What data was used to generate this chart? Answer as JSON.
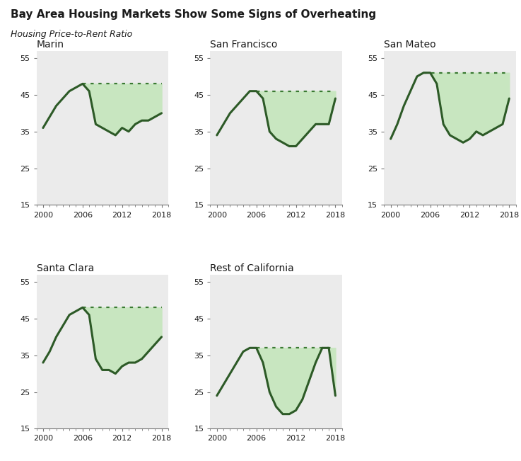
{
  "title": "Bay Area Housing Markets Show Some Signs of Overheating",
  "subtitle": "Housing Price-to-Rent Ratio",
  "title_color": "#1a1a1a",
  "subtitle_color": "#1a1a1a",
  "background_color": "#ebebeb",
  "line_color": "#2d5a27",
  "fill_color": "#c8e6c0",
  "dotted_color": "#3a7a32",
  "ylim": [
    15,
    57
  ],
  "yticks": [
    15,
    25,
    35,
    45,
    55
  ],
  "xticks": [
    2000,
    2006,
    2012,
    2018
  ],
  "subplots": [
    {
      "title": "Marin",
      "years": [
        2000,
        2001,
        2002,
        2003,
        2004,
        2005,
        2006,
        2007,
        2008,
        2009,
        2010,
        2011,
        2012,
        2013,
        2014,
        2015,
        2016,
        2017,
        2018
      ],
      "values": [
        36,
        39,
        42,
        44,
        46,
        47,
        48,
        46,
        37,
        36,
        35,
        34,
        36,
        35,
        37,
        38,
        38,
        39,
        40
      ],
      "peak_value": 48,
      "dotted_start_year": 2006
    },
    {
      "title": "San Francisco",
      "years": [
        2000,
        2001,
        2002,
        2003,
        2004,
        2005,
        2006,
        2007,
        2008,
        2009,
        2010,
        2011,
        2012,
        2013,
        2014,
        2015,
        2016,
        2017,
        2018
      ],
      "values": [
        34,
        37,
        40,
        42,
        44,
        46,
        46,
        44,
        35,
        33,
        32,
        31,
        31,
        33,
        35,
        37,
        37,
        37,
        44
      ],
      "peak_value": 46,
      "dotted_start_year": 2006
    },
    {
      "title": "San Mateo",
      "years": [
        2000,
        2001,
        2002,
        2003,
        2004,
        2005,
        2006,
        2007,
        2008,
        2009,
        2010,
        2011,
        2012,
        2013,
        2014,
        2015,
        2016,
        2017,
        2018
      ],
      "values": [
        33,
        37,
        42,
        46,
        50,
        51,
        51,
        48,
        37,
        34,
        33,
        32,
        33,
        35,
        34,
        35,
        36,
        37,
        44
      ],
      "peak_value": 51,
      "dotted_start_year": 2005
    },
    {
      "title": "Santa Clara",
      "years": [
        2000,
        2001,
        2002,
        2003,
        2004,
        2005,
        2006,
        2007,
        2008,
        2009,
        2010,
        2011,
        2012,
        2013,
        2014,
        2015,
        2016,
        2017,
        2018
      ],
      "values": [
        33,
        36,
        40,
        43,
        46,
        47,
        48,
        46,
        34,
        31,
        31,
        30,
        32,
        33,
        33,
        34,
        36,
        38,
        40
      ],
      "peak_value": 48,
      "dotted_start_year": 2006
    },
    {
      "title": "Rest of California",
      "years": [
        2000,
        2001,
        2002,
        2003,
        2004,
        2005,
        2006,
        2007,
        2008,
        2009,
        2010,
        2011,
        2012,
        2013,
        2014,
        2015,
        2016,
        2017,
        2018
      ],
      "values": [
        24,
        27,
        30,
        33,
        36,
        37,
        37,
        33,
        25,
        21,
        19,
        19,
        20,
        23,
        28,
        33,
        37,
        37,
        24
      ],
      "peak_value": 37,
      "dotted_start_year": 2006
    }
  ]
}
